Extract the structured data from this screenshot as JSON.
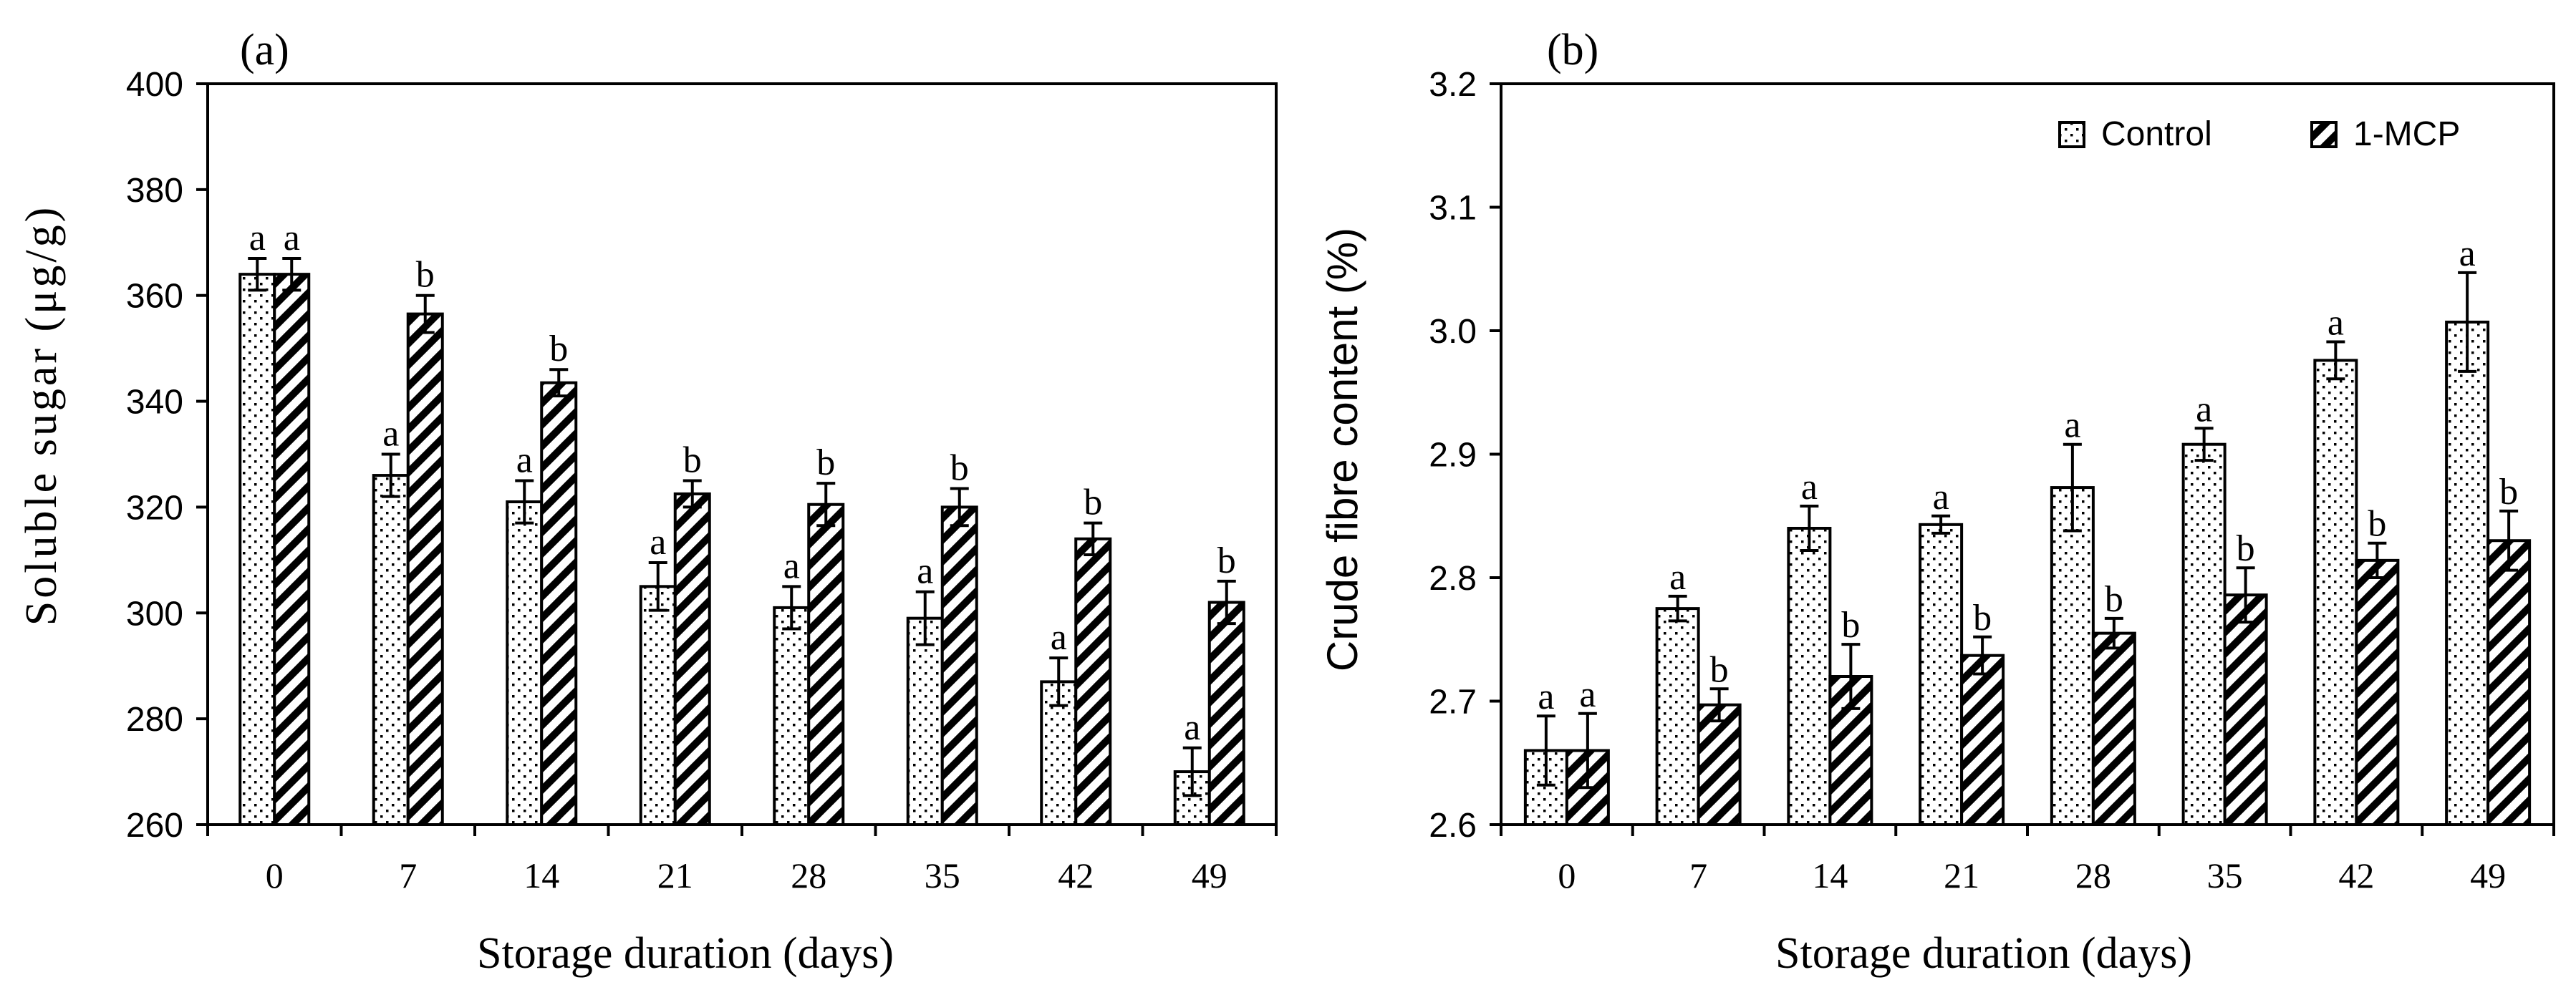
{
  "chart_data": [
    {
      "panel_label": "(a)",
      "type": "bar",
      "title": "",
      "xlabel": "Storage duration (days)",
      "ylabel": "Soluble sugar (μg/g)",
      "categories": [
        "0",
        "7",
        "14",
        "21",
        "28",
        "35",
        "42",
        "49"
      ],
      "ylim": [
        260,
        400
      ],
      "yticks": [
        "260",
        "280",
        "300",
        "320",
        "340",
        "360",
        "380",
        "400"
      ],
      "grid": false,
      "series": [
        {
          "name": "Control",
          "pattern": "dots",
          "values": [
            364,
            326,
            321,
            305,
            301,
            299,
            287,
            270
          ],
          "errors": [
            3,
            4,
            4,
            4.5,
            4,
            5,
            4.5,
            4.5
          ],
          "letters": [
            "a",
            "a",
            "a",
            "a",
            "a",
            "a",
            "a",
            "a"
          ]
        },
        {
          "name": "1-MCP",
          "pattern": "diagonal",
          "values": [
            364,
            356.5,
            343.5,
            322.5,
            320.5,
            320,
            314,
            302
          ],
          "errors": [
            3,
            3.5,
            2.5,
            2.5,
            4,
            3.5,
            3,
            4
          ],
          "letters": [
            "a",
            "b",
            "b",
            "b",
            "b",
            "b",
            "b",
            "b"
          ]
        }
      ]
    },
    {
      "panel_label": "(b)",
      "type": "bar",
      "title": "",
      "xlabel": "Storage duration (days)",
      "ylabel": "Crude fibre content (%)",
      "categories": [
        "0",
        "7",
        "14",
        "21",
        "28",
        "35",
        "42",
        "49"
      ],
      "ylim": [
        2.6,
        3.2
      ],
      "yticks": [
        "2.6",
        "2.7",
        "2.8",
        "2.9",
        "3.0",
        "3.1",
        "3.2"
      ],
      "grid": false,
      "legend": {
        "position": "top-right",
        "entries": [
          "Control",
          "1-MCP"
        ]
      },
      "series": [
        {
          "name": "Control",
          "pattern": "dots",
          "values": [
            2.66,
            2.775,
            2.84,
            2.843,
            2.873,
            2.908,
            2.976,
            3.007
          ],
          "errors": [
            0.028,
            0.01,
            0.018,
            0.007,
            0.035,
            0.013,
            0.015,
            0.04
          ],
          "letters": [
            "a",
            "a",
            "a",
            "a",
            "a",
            "a",
            "a",
            "a"
          ]
        },
        {
          "name": "1-MCP",
          "pattern": "diagonal",
          "values": [
            2.66,
            2.697,
            2.72,
            2.737,
            2.755,
            2.786,
            2.814,
            2.83
          ],
          "errors": [
            0.03,
            0.013,
            0.026,
            0.015,
            0.012,
            0.022,
            0.014,
            0.024
          ],
          "letters": [
            "a",
            "b",
            "b",
            "b",
            "b",
            "b",
            "b",
            "b"
          ]
        }
      ]
    }
  ]
}
